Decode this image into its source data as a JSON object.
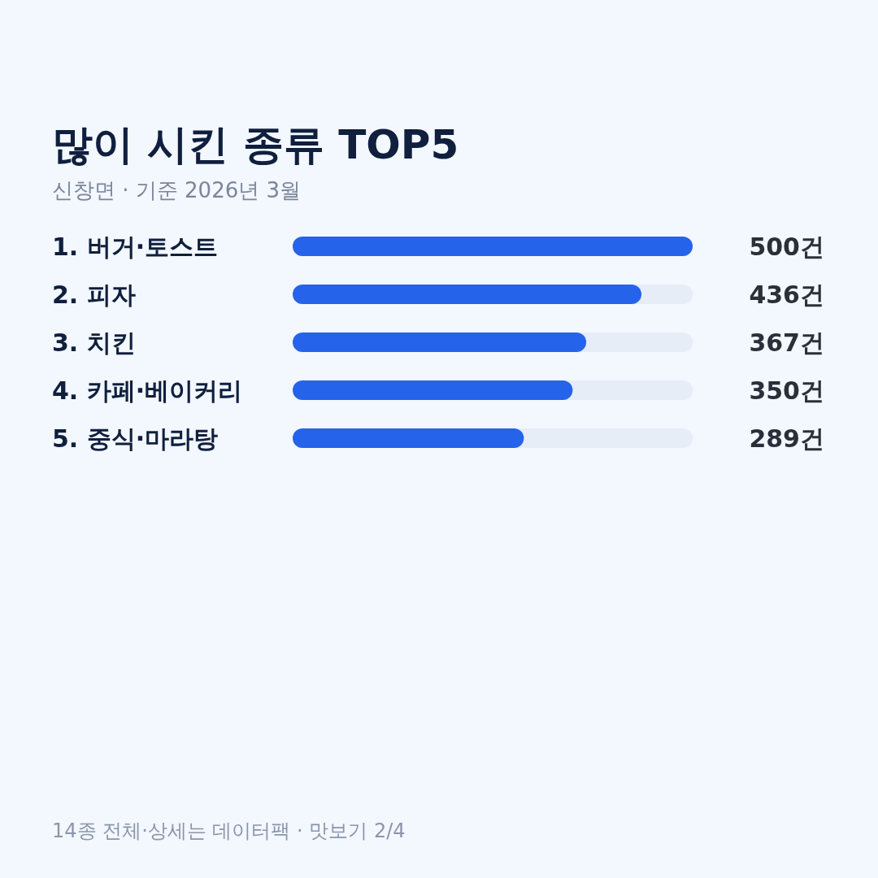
{
  "chart_data": {
    "type": "bar",
    "orientation": "horizontal",
    "title": "많이 시킨 종류 TOP5",
    "subtitle": "신창면 · 기준 2026년 3월",
    "categories": [
      "1. 버거·토스트",
      "2. 피자",
      "3. 치킨",
      "4. 카페·베이커리",
      "5. 중식·마라탕"
    ],
    "values": [
      500,
      436,
      367,
      350,
      289
    ],
    "value_labels": [
      "500건",
      "436건",
      "367건",
      "350건",
      "289건"
    ],
    "color": "#2563eb",
    "xlim": [
      0,
      500
    ],
    "annotations": [
      "14종 전체·상세는 데이터팩 · 맛보기 2/4"
    ]
  }
}
